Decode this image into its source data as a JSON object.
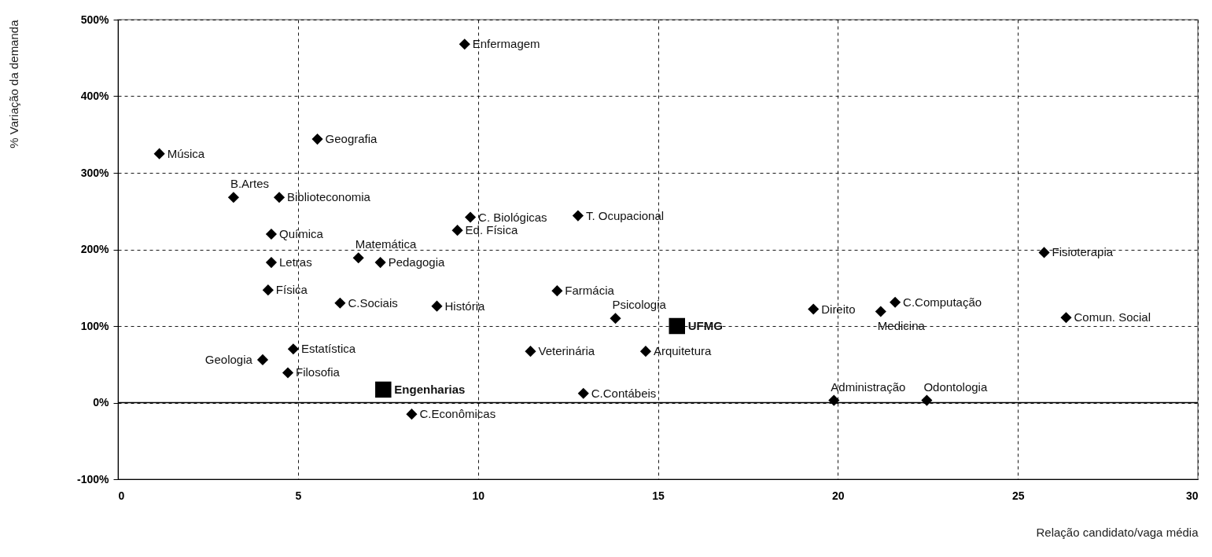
{
  "chart_data": {
    "type": "scatter",
    "xlabel": "Relação candidato/vaga média",
    "ylabel": "% Variação da demanda",
    "xlim": [
      0,
      30
    ],
    "xticks": [
      0,
      5,
      10,
      15,
      20,
      25,
      30
    ],
    "ylim": [
      -100,
      500
    ],
    "yticks": [
      {
        "value": -100,
        "label": "-100%"
      },
      {
        "value": 0,
        "label": "0%"
      },
      {
        "value": 100,
        "label": "100%"
      },
      {
        "value": 200,
        "label": "200%"
      },
      {
        "value": 300,
        "label": "300%"
      },
      {
        "value": 400,
        "label": "400%"
      },
      {
        "value": 500,
        "label": "500%"
      }
    ],
    "grid": true,
    "ref_lines": [
      {
        "axis": "y",
        "value": 0,
        "color": "#000000",
        "line_style": "solid"
      }
    ],
    "series": [
      {
        "color": "#000000",
        "marker": "diamond",
        "x": [
          9.63,
          1.15,
          5.54,
          3.21,
          4.48,
          4.26,
          9.79,
          9.43,
          4.26,
          6.68,
          7.29,
          4.17,
          6.17,
          8.86,
          4.87,
          4.02,
          4.72,
          8.16,
          12.78,
          12.2,
          13.82,
          11.46,
          14.66,
          12.93,
          19.32,
          21.19,
          21.59,
          25.73,
          26.34,
          19.89,
          22.47
        ],
        "values": [
          468,
          325,
          344,
          268,
          268,
          220,
          242,
          225,
          183,
          189,
          183,
          147,
          130,
          126,
          70,
          56,
          39,
          -15,
          244,
          146,
          110,
          67,
          67,
          12,
          122,
          119,
          131,
          196,
          111,
          3,
          3
        ]
      },
      {
        "color": "#000000",
        "marker": "square",
        "x": [
          7.37,
          15.53
        ],
        "values": [
          17,
          100
        ]
      }
    ],
    "annotations": [
      {
        "text": "Enfermagem",
        "x": 9.63,
        "y": 468
      },
      {
        "text": "Música",
        "x": 1.15,
        "y": 325
      },
      {
        "text": "Geografia",
        "x": 5.54,
        "y": 344
      },
      {
        "text": "B.Artes",
        "x": 3.21,
        "y": 268
      },
      {
        "text": "Biblioteconomia",
        "x": 4.48,
        "y": 268
      },
      {
        "text": "Química",
        "x": 4.26,
        "y": 220
      },
      {
        "text": "C. Biológicas",
        "x": 9.79,
        "y": 242
      },
      {
        "text": "Ed. Física",
        "x": 9.43,
        "y": 225
      },
      {
        "text": "Letras",
        "x": 4.26,
        "y": 183
      },
      {
        "text": "Matemática",
        "x": 6.68,
        "y": 189
      },
      {
        "text": "Pedagogia",
        "x": 7.29,
        "y": 183
      },
      {
        "text": "Física",
        "x": 4.17,
        "y": 147
      },
      {
        "text": "C.Sociais",
        "x": 6.17,
        "y": 130
      },
      {
        "text": "História",
        "x": 8.86,
        "y": 126
      },
      {
        "text": "Estatística",
        "x": 4.87,
        "y": 70
      },
      {
        "text": "Geologia",
        "x": 4.02,
        "y": 56
      },
      {
        "text": "Filosofia",
        "x": 4.72,
        "y": 39
      },
      {
        "text": "C.Econômicas",
        "x": 8.16,
        "y": -15
      },
      {
        "text": "T. Ocupacional",
        "x": 12.78,
        "y": 244
      },
      {
        "text": "Farmácia",
        "x": 12.2,
        "y": 146
      },
      {
        "text": "Psicologia",
        "x": 13.82,
        "y": 110
      },
      {
        "text": "Veterinária",
        "x": 11.46,
        "y": 67
      },
      {
        "text": "Arquitetura",
        "x": 14.66,
        "y": 67
      },
      {
        "text": "C.Contábeis",
        "x": 12.93,
        "y": 12
      },
      {
        "text": "Direito",
        "x": 19.32,
        "y": 122
      },
      {
        "text": "Medicina",
        "x": 21.19,
        "y": 119
      },
      {
        "text": "C.Computação",
        "x": 21.59,
        "y": 131
      },
      {
        "text": "Fisioterapia",
        "x": 25.73,
        "y": 196
      },
      {
        "text": "Comun. Social",
        "x": 26.34,
        "y": 111
      },
      {
        "text": "Administração",
        "x": 19.89,
        "y": 3
      },
      {
        "text": "Odontologia",
        "x": 22.47,
        "y": 3
      },
      {
        "text": "Engenharias",
        "x": 7.37,
        "y": 17
      },
      {
        "text": "UFMG",
        "x": 15.53,
        "y": 100
      }
    ]
  }
}
